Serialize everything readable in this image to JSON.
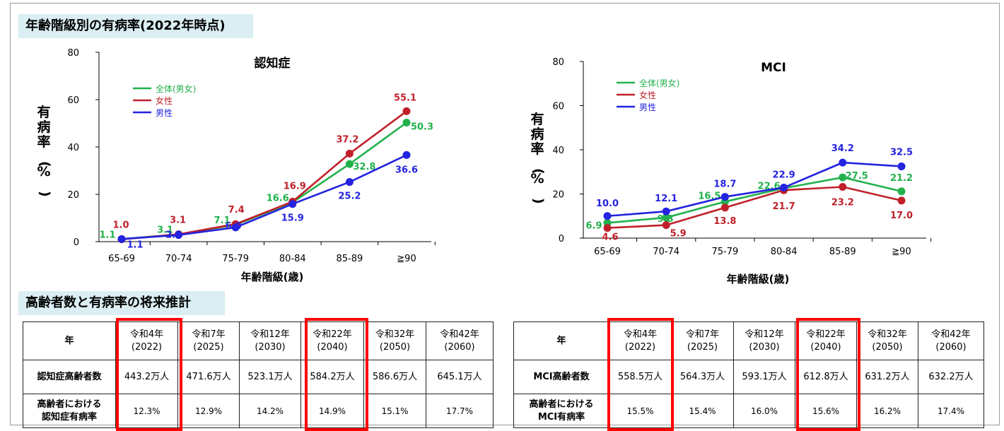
{
  "section1_title": "年齢階級別の有病率(2022年時点)",
  "section2_title": "高齢者数と有病率の将来推計",
  "colors": {
    "total": "#22b14c",
    "female": "#c0202a",
    "male": "#2323e0",
    "title_bg": "#daeef3",
    "highlight": "#ff0000"
  },
  "chart_data": [
    {
      "type": "line",
      "title": "認知症",
      "xlabel": "年齢階級(歳)",
      "ylabel": "有病率(%)",
      "ylim": [
        0,
        80
      ],
      "yticks": [
        "0",
        "20",
        "40",
        "60",
        "80"
      ],
      "categories": [
        "65-69",
        "70-74",
        "75-79",
        "80-84",
        "85-89",
        "≧90"
      ],
      "legend_position": "top-left",
      "series": [
        {
          "name": "全体(男女)",
          "key": "total",
          "values": [
            1.1,
            3.1,
            7.1,
            16.6,
            32.8,
            50.3
          ],
          "labels": [
            "1.1",
            "3.1",
            "7.1",
            "16.6",
            "32.8",
            "50.3"
          ]
        },
        {
          "name": "女性",
          "key": "female",
          "values": [
            1.0,
            3.1,
            7.4,
            16.9,
            37.2,
            55.1
          ],
          "labels": [
            "1.0",
            "3.1",
            "7.4",
            "16.9",
            "37.2",
            "55.1"
          ]
        },
        {
          "name": "男性",
          "key": "male",
          "values": [
            1.1,
            2.8,
            6.0,
            15.9,
            25.2,
            36.6
          ],
          "labels": [
            "1.1",
            "2.8",
            "6.0",
            "15.9",
            "25.2",
            "36.6"
          ]
        }
      ]
    },
    {
      "type": "line",
      "title": "MCI",
      "xlabel": "年齢階級(歳)",
      "ylabel": "有病率(%)",
      "ylim": [
        0,
        80
      ],
      "yticks": [
        "0",
        "20",
        "40",
        "60",
        "80"
      ],
      "categories": [
        "65-69",
        "70-74",
        "75-79",
        "80-84",
        "85-89",
        "≧90"
      ],
      "legend_position": "top-left",
      "series": [
        {
          "name": "全体(男女)",
          "key": "total",
          "values": [
            6.9,
            9.3,
            16.5,
            22.6,
            27.5,
            21.2
          ],
          "labels": [
            "6.9",
            "9.3",
            "16.5",
            "22.6",
            "27.5",
            "21.2"
          ]
        },
        {
          "name": "女性",
          "key": "female",
          "values": [
            4.6,
            5.9,
            13.8,
            21.7,
            23.2,
            17.0
          ],
          "labels": [
            "4.6",
            "5.9",
            "13.8",
            "21.7",
            "23.2",
            "17.0"
          ]
        },
        {
          "name": "男性",
          "key": "male",
          "values": [
            10.0,
            12.1,
            18.7,
            22.9,
            34.2,
            32.5
          ],
          "labels": [
            "10.0",
            "12.1",
            "18.7",
            "22.9",
            "34.2",
            "32.5"
          ]
        }
      ]
    }
  ],
  "table_dementia": {
    "corner": "年",
    "years": [
      [
        "令和4年",
        "(2022)"
      ],
      [
        "令和7年",
        "(2025)"
      ],
      [
        "令和12年",
        "(2030)"
      ],
      [
        "令和22年",
        "(2040)"
      ],
      [
        "令和32年",
        "(2050)"
      ],
      [
        "令和42年",
        "(2060)"
      ]
    ],
    "row1_label": "認知症高齢者数",
    "row1": [
      "443.2万人",
      "471.6万人",
      "523.1万人",
      "584.2万人",
      "586.6万人",
      "645.1万人"
    ],
    "row2_label": [
      "高齢者における",
      "認知症有病率"
    ],
    "row2": [
      "12.3%",
      "12.9%",
      "14.2%",
      "14.9%",
      "15.1%",
      "17.7%"
    ]
  },
  "table_mci": {
    "corner": "年",
    "years": [
      [
        "令和4年",
        "(2022)"
      ],
      [
        "令和7年",
        "(2025)"
      ],
      [
        "令和12年",
        "(2030)"
      ],
      [
        "令和22年",
        "(2040)"
      ],
      [
        "令和32年",
        "(2050)"
      ],
      [
        "令和42年",
        "(2060)"
      ]
    ],
    "row1_label": "MCI高齢者数",
    "row1": [
      "558.5万人",
      "564.3万人",
      "593.1万人",
      "612.8万人",
      "631.2万人",
      "632.2万人"
    ],
    "row2_label": [
      "高齢者における",
      "MCI有病率"
    ],
    "row2": [
      "15.5%",
      "15.4%",
      "16.0%",
      "15.6%",
      "16.2%",
      "17.4%"
    ]
  }
}
